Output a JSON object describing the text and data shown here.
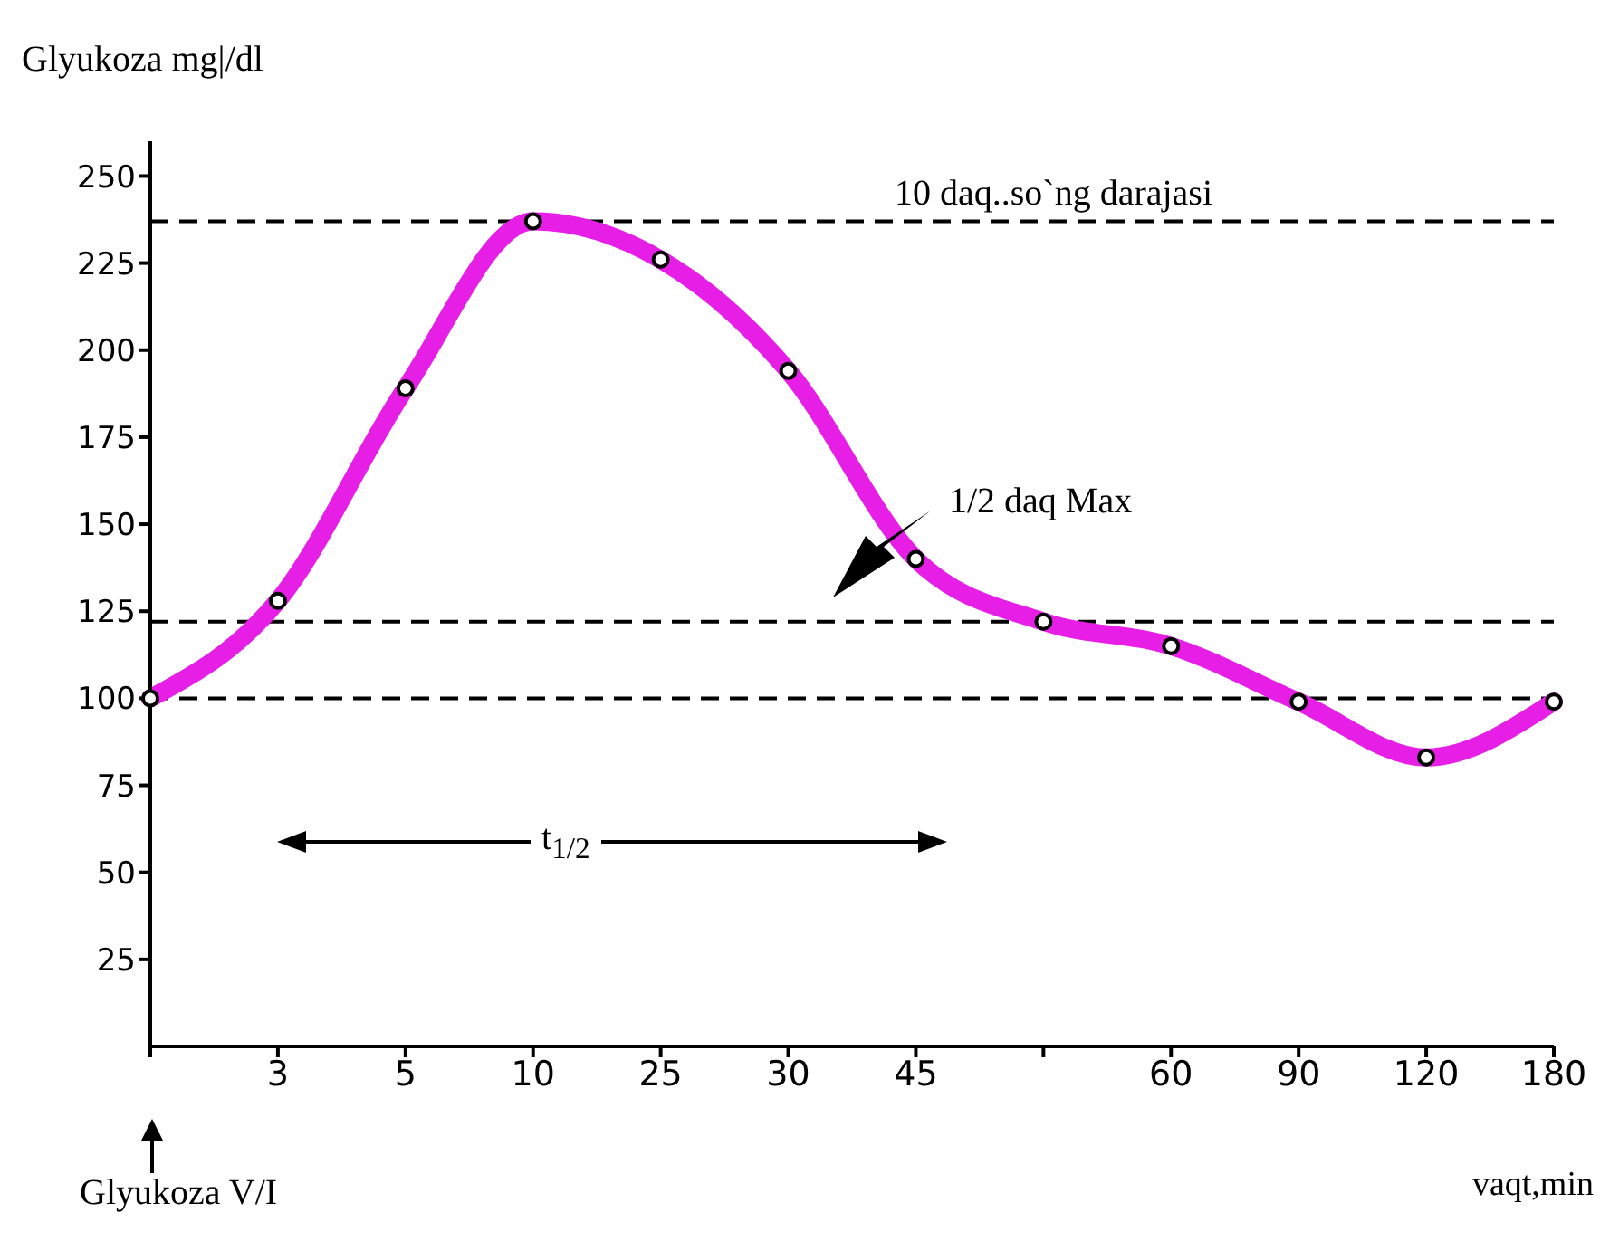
{
  "chart_data": {
    "type": "line",
    "xlabel": "vaqt,min",
    "ylabel": "Glyukoza mg|/dl",
    "categories": [
      null,
      "3",
      "5",
      "10",
      "25",
      "30",
      "45",
      null,
      "60",
      "90",
      "120",
      "180"
    ],
    "series": [
      {
        "color": "#e61ee6",
        "values": [
          100,
          128,
          189,
          237,
          226,
          194,
          140,
          122,
          115,
          99,
          83,
          99
        ]
      }
    ],
    "ylim": [
      0,
      260
    ],
    "yticks": [
      25,
      50,
      75,
      100,
      125,
      150,
      175,
      200,
      225,
      250
    ],
    "ref_lines": [
      {
        "axis": "y",
        "value": 237,
        "color": "#000000",
        "line_style": "dashed"
      },
      {
        "axis": "y",
        "value": 122,
        "color": "#000000",
        "line_style": "dashed"
      },
      {
        "axis": "y",
        "value": 100,
        "color": "#000000",
        "line_style": "dashed"
      }
    ],
    "annotations": [
      "10 daq..so`ng darajasi",
      "1/2 daq Max",
      "t$_{1/2}$",
      "Glyukoza V/I"
    ],
    "marker": "circle",
    "line_style": "solid",
    "grid": false,
    "legend": false
  }
}
